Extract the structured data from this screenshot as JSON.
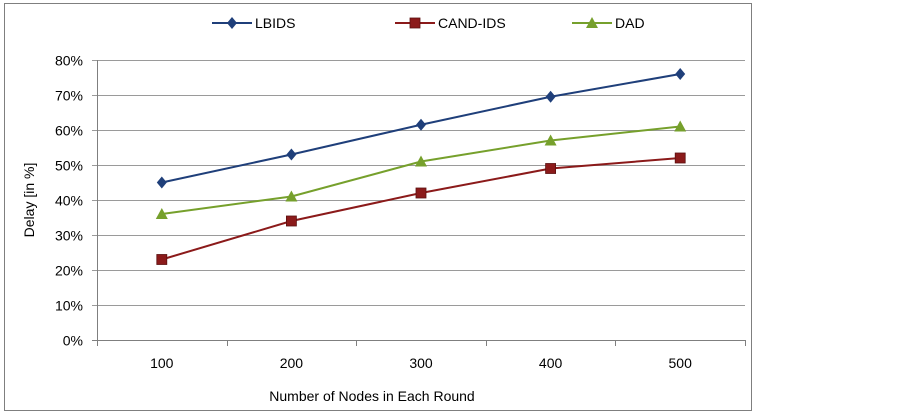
{
  "chart_data": {
    "type": "line",
    "title": "",
    "xlabel": "Number of Nodes in Each Round",
    "ylabel": "Delay [in %]",
    "categories": [
      "100",
      "200",
      "300",
      "400",
      "500"
    ],
    "ylim": [
      0,
      80
    ],
    "yticks": [
      "0%",
      "10%",
      "20%",
      "30%",
      "40%",
      "50%",
      "60%",
      "70%",
      "80%"
    ],
    "grid": true,
    "legend_position": "top",
    "series": [
      {
        "name": "LBIDS",
        "color": "#1f3f7a",
        "marker": "diamond",
        "values": [
          45,
          53,
          61.5,
          69.5,
          76
        ]
      },
      {
        "name": "CAND-IDS",
        "color": "#8b1a1a",
        "marker": "square",
        "values": [
          23,
          34,
          42,
          49,
          52
        ]
      },
      {
        "name": "DAD",
        "color": "#76a02c",
        "marker": "triangle",
        "values": [
          36,
          41,
          51,
          57,
          61
        ]
      }
    ]
  }
}
